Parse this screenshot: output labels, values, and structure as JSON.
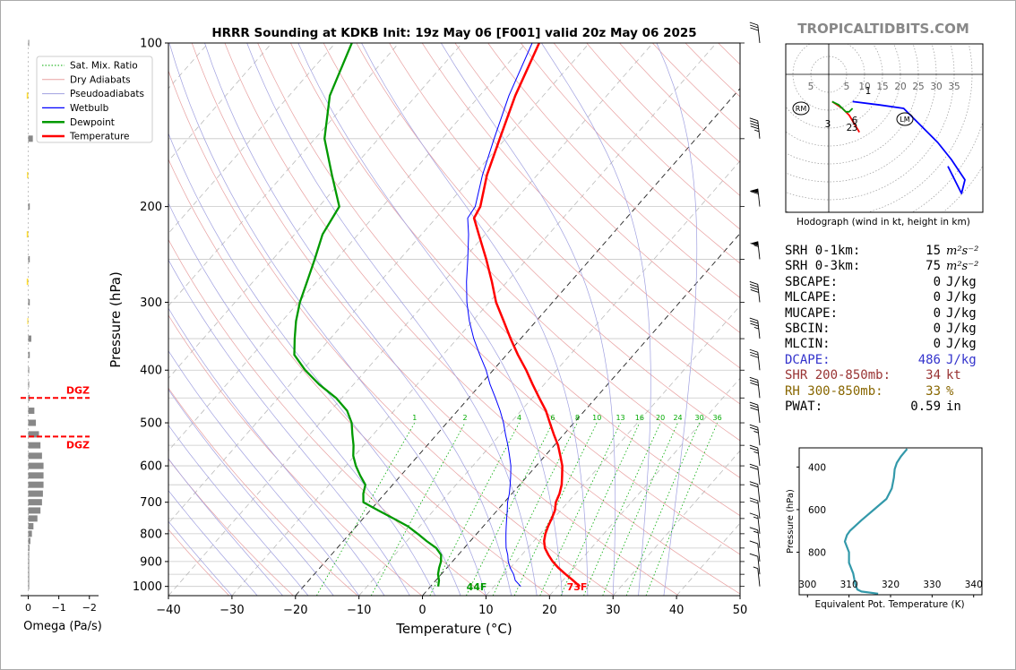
{
  "brand": "TROPICALTIDBITS.COM",
  "colors": {
    "temperature": "#ff0000",
    "dewpoint": "#009900",
    "wetbulb": "#0000ff",
    "dry_adiabat": "#e8a0a0",
    "pseudoadiabat": "#a0a0e0",
    "mixing_ratio": "#00aa00",
    "dcape": "#3333cc",
    "shear": "#993333",
    "rh": "#886600",
    "hodo_low": "#ff0000",
    "hodo_mid": "#009900",
    "hodo_high": "#0000ff",
    "theta_e": "#3399aa",
    "brand": "#888888"
  },
  "main": {
    "title": "HRRR Sounding at KDKB Init: 19z May 06 [F001] valid 20z May 06 2025",
    "surface_temp_label": "73F",
    "surface_dew_label": "44F",
    "legend": [
      {
        "label": "Sat. Mix. Ratio",
        "style": "mix"
      },
      {
        "label": "Dry Adiabats",
        "style": "dry"
      },
      {
        "label": "Pseudoadiabats",
        "style": "pseudo"
      },
      {
        "label": "Wetbulb",
        "style": "wetbulb"
      },
      {
        "label": "Dewpoint",
        "style": "dewpoint"
      },
      {
        "label": "Temperature",
        "style": "temperature"
      }
    ]
  },
  "omega": {
    "xlabel": "Omega (Pa/s)",
    "tick_labels": [
      "0",
      "−1",
      "−2"
    ],
    "dgz_label": "DGZ"
  },
  "hodograph": {
    "caption": "Hodograph (wind in kt, height in km)",
    "ring_labels": [
      "5",
      "5",
      "10",
      "15",
      "20",
      "25",
      "30",
      "35"
    ],
    "height_labels": [
      "1",
      "6",
      "3",
      "2",
      "3"
    ],
    "rm_label": "RM",
    "lm_label": "LM"
  },
  "stats": [
    {
      "label": "SRH 0-1km:",
      "value": "15",
      "unit": "m²s⁻²",
      "tone": "default"
    },
    {
      "label": "SRH 0-3km:",
      "value": "75",
      "unit": "m²s⁻²",
      "tone": "default"
    },
    {
      "label": "SBCAPE:",
      "value": "0",
      "unit": "J/kg",
      "tone": "default"
    },
    {
      "label": "MLCAPE:",
      "value": "0",
      "unit": "J/kg",
      "tone": "default"
    },
    {
      "label": "MUCAPE:",
      "value": "0",
      "unit": "J/kg",
      "tone": "default"
    },
    {
      "label": "SBCIN:",
      "value": "0",
      "unit": "J/kg",
      "tone": "default"
    },
    {
      "label": "MLCIN:",
      "value": "0",
      "unit": "J/kg",
      "tone": "default"
    },
    {
      "label": "DCAPE:",
      "value": "486",
      "unit": "J/kg",
      "tone": "dcape"
    },
    {
      "label": "SHR 200-850mb:",
      "value": "34",
      "unit": "kt",
      "tone": "shear"
    },
    {
      "label": "RH 300-850mb:",
      "value": "33",
      "unit": "%",
      "tone": "rh"
    },
    {
      "label": "PWAT:",
      "value": "0.59",
      "unit": "in",
      "tone": "default"
    }
  ],
  "theta_e": {
    "ylabel": "Pressure (hPa)",
    "xlabel": "Equivalent Pot. Temperature (K)"
  },
  "chart_data": [
    {
      "id": "skewt",
      "type": "line",
      "xlabel": "Temperature (°C)",
      "ylabel": "Pressure (hPa)",
      "x_ticks": [
        -40,
        -30,
        -20,
        -10,
        0,
        10,
        20,
        30,
        40,
        50
      ],
      "xlim": [
        -40,
        50
      ],
      "y_ticks": [
        100,
        200,
        300,
        400,
        500,
        600,
        700,
        800,
        900,
        1000
      ],
      "ylim": [
        1040,
        100
      ],
      "y_scale": "log",
      "skew_deg_per_decade_c": 75,
      "isobars": [
        100,
        150,
        200,
        250,
        300,
        350,
        400,
        450,
        500,
        550,
        600,
        650,
        700,
        750,
        800,
        850,
        900,
        950,
        1000
      ],
      "mixing_ratio_labels": [
        "1",
        "2",
        "4",
        "6",
        "8",
        "10",
        "13",
        "16",
        "20",
        "24",
        "30",
        "36"
      ],
      "mixing_ratio_values": [
        1,
        2,
        4,
        6,
        8,
        10,
        13,
        16,
        20,
        24,
        30,
        36
      ],
      "series": [
        {
          "name": "Temperature",
          "points": [
            [
              1000,
              23.5
            ],
            [
              975,
              21.6
            ],
            [
              950,
              19.6
            ],
            [
              925,
              17.6
            ],
            [
              900,
              15.8
            ],
            [
              875,
              14.2
            ],
            [
              850,
              12.7
            ],
            [
              825,
              11.6
            ],
            [
              800,
              10.8
            ],
            [
              775,
              10.2
            ],
            [
              750,
              9.7
            ],
            [
              725,
              9.1
            ],
            [
              700,
              8.1
            ],
            [
              675,
              7.5
            ],
            [
              650,
              6.6
            ],
            [
              625,
              5.4
            ],
            [
              600,
              4.1
            ],
            [
              575,
              2.4
            ],
            [
              550,
              0.6
            ],
            [
              525,
              -1.6
            ],
            [
              500,
              -3.8
            ],
            [
              475,
              -6.1
            ],
            [
              450,
              -8.9
            ],
            [
              425,
              -11.8
            ],
            [
              400,
              -14.8
            ],
            [
              375,
              -18.2
            ],
            [
              350,
              -21.6
            ],
            [
              325,
              -25.1
            ],
            [
              300,
              -28.9
            ],
            [
              275,
              -32.4
            ],
            [
              250,
              -36.4
            ],
            [
              225,
              -41.0
            ],
            [
              210,
              -44.0
            ],
            [
              200,
              -44.6
            ],
            [
              175,
              -47.9
            ],
            [
              150,
              -50.9
            ],
            [
              125,
              -54.4
            ],
            [
              100,
              -57.9
            ]
          ]
        },
        {
          "name": "Dewpoint",
          "points": [
            [
              1000,
              1.2
            ],
            [
              975,
              0.5
            ],
            [
              950,
              -0.5
            ],
            [
              925,
              -1.2
            ],
            [
              900,
              -1.8
            ],
            [
              875,
              -2.7
            ],
            [
              850,
              -4.4
            ],
            [
              825,
              -6.9
            ],
            [
              800,
              -9.3
            ],
            [
              775,
              -11.9
            ],
            [
              750,
              -15.2
            ],
            [
              725,
              -18.7
            ],
            [
              700,
              -22.2
            ],
            [
              675,
              -23.4
            ],
            [
              650,
              -24.3
            ],
            [
              625,
              -26.4
            ],
            [
              600,
              -28.4
            ],
            [
              575,
              -30.2
            ],
            [
              550,
              -31.6
            ],
            [
              525,
              -33.3
            ],
            [
              500,
              -35.0
            ],
            [
              475,
              -37.4
            ],
            [
              450,
              -40.9
            ],
            [
              425,
              -45.4
            ],
            [
              400,
              -49.6
            ],
            [
              375,
              -53.4
            ],
            [
              350,
              -55.6
            ],
            [
              325,
              -57.8
            ],
            [
              300,
              -59.8
            ],
            [
              275,
              -61.5
            ],
            [
              250,
              -63.4
            ],
            [
              225,
              -65.6
            ],
            [
              200,
              -66.8
            ],
            [
              175,
              -72.3
            ],
            [
              150,
              -78.5
            ],
            [
              125,
              -83.6
            ],
            [
              100,
              -87.4
            ]
          ]
        },
        {
          "name": "Wetbulb",
          "points": [
            [
              1000,
              14.2
            ],
            [
              975,
              12.5
            ],
            [
              950,
              11.4
            ],
            [
              925,
              10.0
            ],
            [
              900,
              8.8
            ],
            [
              875,
              7.8
            ],
            [
              850,
              6.6
            ],
            [
              825,
              5.6
            ],
            [
              800,
              4.6
            ],
            [
              775,
              3.6
            ],
            [
              750,
              2.6
            ],
            [
              725,
              1.6
            ],
            [
              700,
              0.5
            ],
            [
              675,
              -0.4
            ],
            [
              650,
              -1.5
            ],
            [
              625,
              -2.7
            ],
            [
              600,
              -4.0
            ],
            [
              575,
              -5.6
            ],
            [
              550,
              -7.3
            ],
            [
              525,
              -9.2
            ],
            [
              500,
              -11.1
            ],
            [
              475,
              -13.3
            ],
            [
              450,
              -15.8
            ],
            [
              425,
              -18.5
            ],
            [
              400,
              -21.1
            ],
            [
              375,
              -24.2
            ],
            [
              350,
              -27.4
            ],
            [
              325,
              -30.5
            ],
            [
              300,
              -33.5
            ],
            [
              275,
              -36.4
            ],
            [
              250,
              -39.3
            ],
            [
              225,
              -42.6
            ],
            [
              210,
              -45.0
            ],
            [
              200,
              -45.4
            ],
            [
              175,
              -48.6
            ],
            [
              150,
              -51.8
            ],
            [
              125,
              -55.4
            ],
            [
              100,
              -59.0
            ]
          ]
        }
      ]
    },
    {
      "id": "omega",
      "type": "bar",
      "xlabel": "Omega (Pa/s)",
      "x_ticks": [
        0,
        -1,
        -2
      ],
      "xlim": [
        0.25,
        -2.3
      ],
      "levels": [
        1000,
        975,
        950,
        925,
        900,
        875,
        850,
        825,
        800,
        775,
        750,
        725,
        700,
        675,
        650,
        625,
        600,
        575,
        550,
        525,
        500,
        475,
        450,
        425,
        400,
        375,
        350,
        325,
        300,
        275,
        250,
        225,
        200,
        175,
        150,
        125,
        100
      ],
      "values": [
        -0.01,
        -0.02,
        -0.02,
        -0.02,
        -0.03,
        -0.03,
        -0.04,
        -0.07,
        -0.12,
        -0.17,
        -0.3,
        -0.4,
        -0.45,
        -0.48,
        -0.5,
        -0.5,
        -0.5,
        -0.45,
        -0.4,
        -0.35,
        -0.25,
        -0.2,
        -0.05,
        -0.02,
        -0.03,
        -0.05,
        -0.1,
        0.03,
        -0.05,
        0.05,
        -0.05,
        0.05,
        -0.05,
        0.04,
        -0.15,
        0.05,
        -0.03
      ],
      "dgz_top_hpa": 450,
      "dgz_bottom_hpa": 530
    },
    {
      "id": "wind_barbs",
      "type": "scatter",
      "levels_hpa": [
        1000,
        950,
        900,
        850,
        800,
        750,
        700,
        650,
        600,
        550,
        500,
        450,
        400,
        350,
        300,
        250,
        200,
        150,
        100
      ],
      "speed_kt": [
        8,
        12,
        14,
        15,
        16,
        20,
        22,
        24,
        26,
        28,
        30,
        32,
        34,
        36,
        40,
        55,
        60,
        45,
        30
      ]
    },
    {
      "id": "hodograph",
      "type": "line",
      "ring_speeds_kt": [
        5,
        10,
        15,
        20,
        25,
        30,
        35
      ],
      "segments": [
        {
          "name": "0-1 km",
          "points": [
            [
              1,
              -8
            ],
            [
              4,
              -10
            ],
            [
              6,
              -12
            ],
            [
              9,
              -17
            ]
          ]
        },
        {
          "name": "1-3 km",
          "points": [
            [
              1,
              -8
            ],
            [
              3,
              -9
            ],
            [
              5,
              -11
            ],
            [
              6,
              -11
            ],
            [
              7,
              -10
            ]
          ]
        },
        {
          "name": "3-6 km",
          "points": [
            [
              7,
              -8
            ],
            [
              15,
              -9
            ],
            [
              22,
              -10
            ],
            [
              27,
              -15
            ],
            [
              32,
              -20
            ],
            [
              36,
              -25
            ],
            [
              40,
              -31
            ],
            [
              39,
              -35
            ],
            [
              35,
              -27
            ]
          ]
        }
      ],
      "rm": [
        -8,
        -5
      ],
      "lm": [
        22,
        -7
      ]
    },
    {
      "id": "theta_e",
      "type": "line",
      "xlabel": "Equivalent Pot. Temperature (K)",
      "ylabel": "Pressure (hPa)",
      "x_ticks": [
        300,
        310,
        320,
        330,
        340
      ],
      "xlim": [
        298,
        342
      ],
      "y_ticks": [
        400,
        600,
        800
      ],
      "ylim": [
        1000,
        310
      ],
      "points": [
        [
          995,
          317
        ],
        [
          985,
          313
        ],
        [
          975,
          312
        ],
        [
          950,
          311.5
        ],
        [
          900,
          311
        ],
        [
          850,
          310
        ],
        [
          800,
          310
        ],
        [
          750,
          309
        ],
        [
          720,
          309.5
        ],
        [
          700,
          310.2
        ],
        [
          650,
          313
        ],
        [
          600,
          316
        ],
        [
          550,
          319
        ],
        [
          500,
          320.3
        ],
        [
          450,
          320.8
        ],
        [
          410,
          321
        ],
        [
          380,
          321.5
        ],
        [
          350,
          322.5
        ],
        [
          315,
          324
        ]
      ]
    }
  ]
}
